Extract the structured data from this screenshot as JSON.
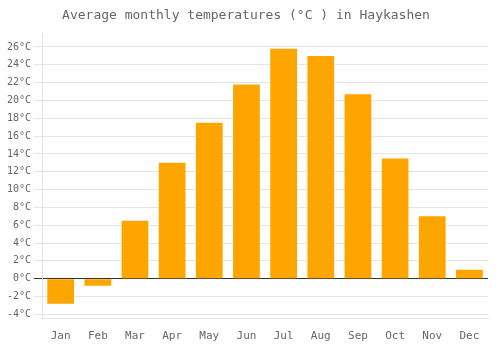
{
  "chart_data": {
    "type": "bar",
    "title": "Average monthly temperatures (°C ) in Haykashen",
    "categories": [
      "Jan",
      "Feb",
      "Mar",
      "Apr",
      "May",
      "Jun",
      "Jul",
      "Aug",
      "Sep",
      "Oct",
      "Nov",
      "Dec"
    ],
    "values": [
      -2.8,
      -0.8,
      6.5,
      13.0,
      17.5,
      21.8,
      25.8,
      25.0,
      20.7,
      13.5,
      7.0,
      1.0
    ],
    "color": "#FFA500",
    "ylim": [
      -4.5,
      27.5
    ],
    "yticks": [
      {
        "value": -4,
        "label": "-4°C"
      },
      {
        "value": -2,
        "label": "-2°C"
      },
      {
        "value": 0,
        "label": "0°C"
      },
      {
        "value": 2,
        "label": "2°C"
      },
      {
        "value": 4,
        "label": "4°C"
      },
      {
        "value": 6,
        "label": "6°C"
      },
      {
        "value": 8,
        "label": "8°C"
      },
      {
        "value": 10,
        "label": "10°C"
      },
      {
        "value": 12,
        "label": "12°C"
      },
      {
        "value": 14,
        "label": "14°C"
      },
      {
        "value": 16,
        "label": "16°C"
      },
      {
        "value": 18,
        "label": "18°C"
      },
      {
        "value": 20,
        "label": "20°C"
      },
      {
        "value": 22,
        "label": "22°C"
      },
      {
        "value": 24,
        "label": "24°C"
      },
      {
        "value": 26,
        "label": "26°C"
      }
    ],
    "grid": true
  }
}
